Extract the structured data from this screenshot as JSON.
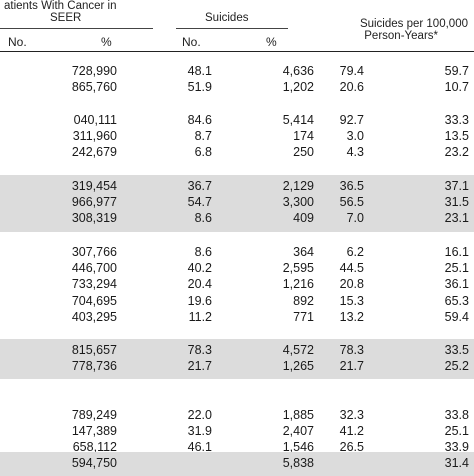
{
  "header": {
    "group1_line1": "atients With Cancer in",
    "group1_line2": "SEER",
    "group2": "Suicides",
    "group3_line1": "Suicides per 100,000",
    "group3_line2": "Person-Years*",
    "col_no_1": "No.",
    "col_pct_1": "%",
    "col_no_2": "No.",
    "col_pct_2": "%"
  },
  "sections": [
    {
      "shaded": false,
      "rows": [
        [
          "728,990",
          "48.1",
          "4,636",
          "79.4",
          "59.7"
        ],
        [
          "865,760",
          "51.9",
          "1,202",
          "20.6",
          "10.7"
        ]
      ]
    },
    {
      "shaded": false,
      "rows": [
        [
          "040,111",
          "84.6",
          "5,414",
          "92.7",
          "33.3"
        ],
        [
          "311,960",
          "8.7",
          "174",
          "3.0",
          "13.5"
        ],
        [
          "242,679",
          "6.8",
          "250",
          "4.3",
          "23.2"
        ]
      ]
    },
    {
      "shaded": true,
      "rows": [
        [
          "319,454",
          "36.7",
          "2,129",
          "36.5",
          "37.1"
        ],
        [
          "966,977",
          "54.7",
          "3,300",
          "56.5",
          "31.5"
        ],
        [
          "308,319",
          "8.6",
          "409",
          "7.0",
          "23.1"
        ]
      ]
    },
    {
      "shaded": false,
      "rows": [
        [
          "307,766",
          "8.6",
          "364",
          "6.2",
          "16.1"
        ],
        [
          "446,700",
          "40.2",
          "2,595",
          "44.5",
          "25.1"
        ],
        [
          "733,294",
          "20.4",
          "1,216",
          "20.8",
          "36.1"
        ],
        [
          "704,695",
          "19.6",
          "892",
          "15.3",
          "65.3"
        ],
        [
          "403,295",
          "11.2",
          "771",
          "13.2",
          "59.4"
        ]
      ]
    },
    {
      "shaded": true,
      "rows": [
        [
          "815,657",
          "78.3",
          "4,572",
          "78.3",
          "33.5"
        ],
        [
          "778,736",
          "21.7",
          "1,265",
          "21.7",
          "25.2"
        ]
      ]
    },
    {
      "shaded": false,
      "rows": [
        [
          "789,249",
          "22.0",
          "1,885",
          "32.3",
          "33.8"
        ],
        [
          "147,389",
          "31.9",
          "2,407",
          "41.2",
          "25.1"
        ],
        [
          "658,112",
          "46.1",
          "1,546",
          "26.5",
          "33.9"
        ]
      ]
    },
    {
      "shaded": true,
      "rows": [
        [
          "594,750",
          "",
          "5,838",
          "",
          "31.4"
        ]
      ]
    }
  ]
}
